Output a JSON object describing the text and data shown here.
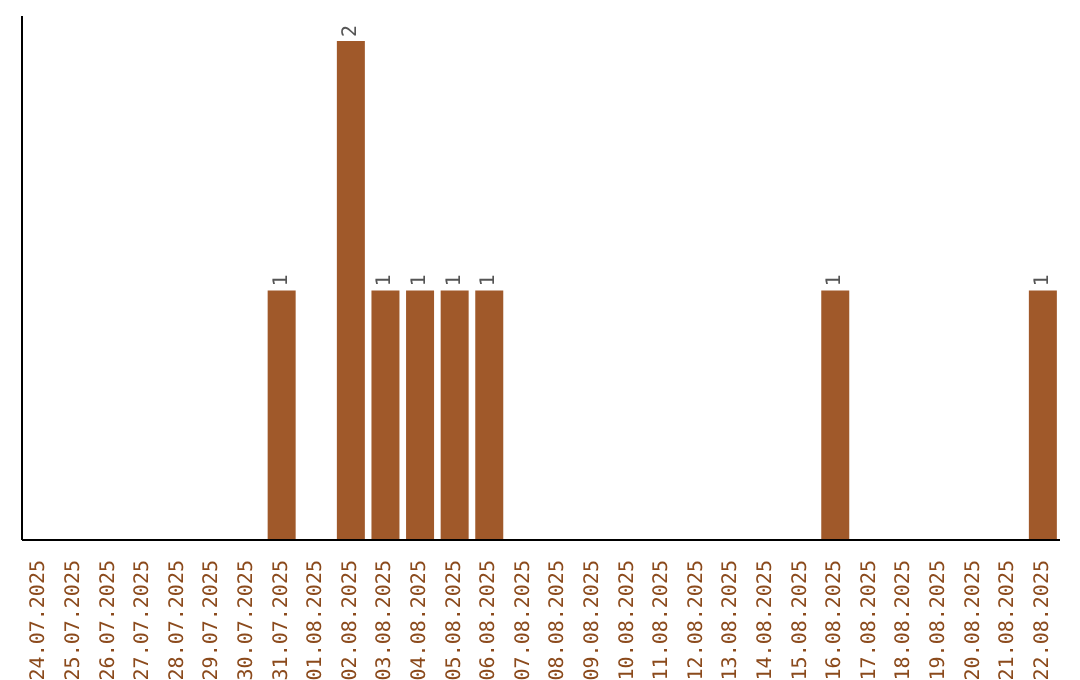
{
  "chart_data": {
    "type": "bar",
    "categories": [
      "24.07.2025",
      "25.07.2025",
      "26.07.2025",
      "27.07.2025",
      "28.07.2025",
      "29.07.2025",
      "30.07.2025",
      "31.07.2025",
      "01.08.2025",
      "02.08.2025",
      "03.08.2025",
      "04.08.2025",
      "05.08.2025",
      "06.08.2025",
      "07.08.2025",
      "08.08.2025",
      "09.08.2025",
      "10.08.2025",
      "11.08.2025",
      "12.08.2025",
      "13.08.2025",
      "14.08.2025",
      "15.08.2025",
      "16.08.2025",
      "17.08.2025",
      "18.08.2025",
      "19.08.2025",
      "20.08.2025",
      "21.08.2025",
      "22.08.2025"
    ],
    "values": [
      0,
      0,
      0,
      0,
      0,
      0,
      0,
      1,
      0,
      2,
      1,
      1,
      1,
      1,
      0,
      0,
      0,
      0,
      0,
      0,
      0,
      0,
      0,
      1,
      0,
      0,
      0,
      0,
      0,
      1
    ],
    "value_labels": [
      null,
      null,
      null,
      null,
      null,
      null,
      null,
      "1",
      null,
      "2",
      "1",
      "1",
      "1",
      "1",
      null,
      null,
      null,
      null,
      null,
      null,
      null,
      null,
      null,
      "1",
      null,
      null,
      null,
      null,
      null,
      "1"
    ],
    "color": "#a0592a",
    "grid": false,
    "legend": false
  }
}
